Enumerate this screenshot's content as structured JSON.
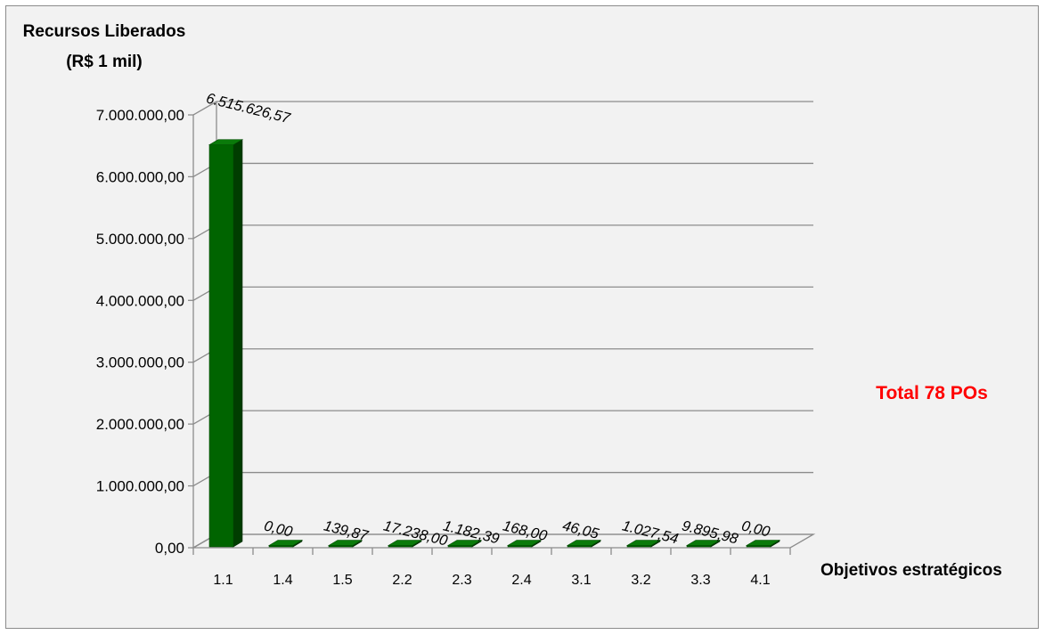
{
  "chart_data": {
    "type": "bar",
    "ylabel_line1": "Recursos Liberados",
    "ylabel_line2": "(R$ 1 mil)",
    "xlabel": "Objetivos estratégicos",
    "annotation": "Total 78 POs",
    "annotation_color": "#ff0000",
    "bar_color": "#006400",
    "ylim": [
      0,
      7000000
    ],
    "yticks": [
      0,
      1000000,
      2000000,
      3000000,
      4000000,
      5000000,
      6000000,
      7000000
    ],
    "ytick_labels": [
      "0,00",
      "1.000.000,00",
      "2.000.000,00",
      "3.000.000,00",
      "4.000.000,00",
      "5.000.000,00",
      "6.000.000,00",
      "7.000.000,00"
    ],
    "grid": true,
    "legend": "none",
    "categories": [
      "1.1",
      "1.4",
      "1.5",
      "2.2",
      "2.3",
      "2.4",
      "3.1",
      "3.2",
      "3.3",
      "4.1"
    ],
    "values": [
      6515626.57,
      0,
      139.87,
      17238.0,
      1182.39,
      168.0,
      46.05,
      1027.54,
      9895.98,
      0
    ],
    "value_labels": [
      "6.515.626,57",
      "0,00",
      "139,87",
      "17.238,00",
      "1.182,39",
      "168,00",
      "46,05",
      "1.027,54",
      "9.895,98",
      "0,00"
    ]
  }
}
